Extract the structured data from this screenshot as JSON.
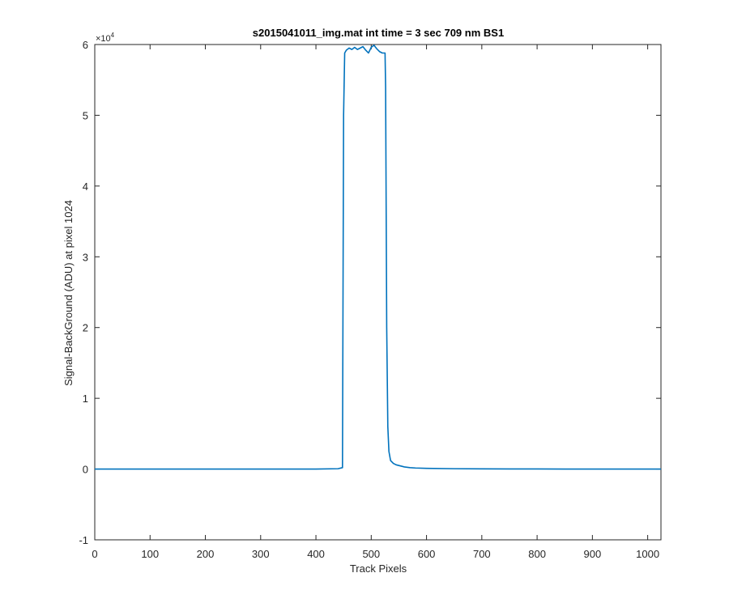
{
  "chart_data": {
    "type": "line",
    "title": "s2015041011_img.mat int time = 3 sec  709 nm BS1",
    "xlabel": "Track Pixels",
    "ylabel": "Signal-BackGround (ADU) at pixel 1024",
    "xlim": [
      0,
      1024
    ],
    "ylim": [
      -1,
      6
    ],
    "y_exponent_label": "×10",
    "y_exponent_power": "4",
    "x_ticks": [
      0,
      100,
      200,
      300,
      400,
      500,
      600,
      700,
      800,
      900,
      1000
    ],
    "x_tick_labels": [
      "0",
      "100",
      "200",
      "300",
      "400",
      "500",
      "600",
      "700",
      "800",
      "900",
      "1000"
    ],
    "y_ticks": [
      -1,
      0,
      1,
      2,
      3,
      4,
      5,
      6
    ],
    "y_tick_labels": [
      "-1",
      "0",
      "1",
      "2",
      "3",
      "4",
      "5",
      "6"
    ],
    "grid": false,
    "line_color": "#0072bd",
    "series": [
      {
        "x": [
          0,
          50,
          100,
          150,
          200,
          250,
          300,
          350,
          400,
          440,
          448,
          450,
          452,
          455,
          460,
          465,
          470,
          475,
          480,
          485,
          490,
          495,
          500,
          505,
          510,
          515,
          520,
          525,
          526,
          528,
          530,
          532,
          535,
          540,
          545,
          550,
          560,
          570,
          580,
          600,
          650,
          700,
          750,
          800,
          850,
          900,
          950,
          1000,
          1024
        ],
        "y": [
          0.0,
          0.0,
          0.0,
          0.0,
          0.0,
          0.0,
          0.0,
          0.0,
          0.0,
          0.005,
          0.02,
          5.0,
          5.88,
          5.92,
          5.95,
          5.93,
          5.96,
          5.93,
          5.95,
          5.97,
          5.92,
          5.88,
          5.96,
          5.99,
          5.94,
          5.9,
          5.88,
          5.88,
          5.4,
          2.0,
          0.6,
          0.25,
          0.12,
          0.08,
          0.06,
          0.05,
          0.03,
          0.02,
          0.015,
          0.01,
          0.005,
          0.003,
          0.002,
          0.001,
          0.0,
          0.0,
          0.0,
          0.0,
          0.0
        ]
      }
    ]
  }
}
